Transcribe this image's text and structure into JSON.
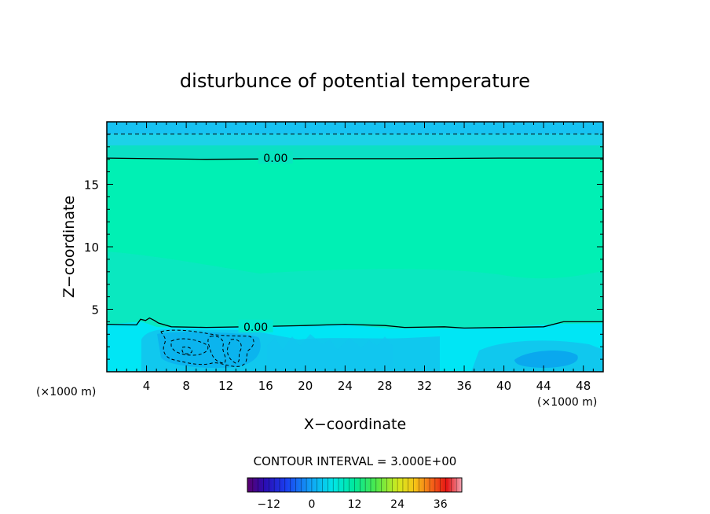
{
  "chart_data": {
    "type": "contour",
    "title": "disturbunce of potential temperature",
    "xlabel": "X−coordinate",
    "ylabel": "Z−coordinate",
    "x_unit_left": "(×1000 m)",
    "x_unit_right": "(×1000 m)",
    "xlim": [
      0,
      50
    ],
    "ylim": [
      0,
      20
    ],
    "x_ticks": [
      4,
      8,
      12,
      16,
      20,
      24,
      28,
      32,
      36,
      40,
      44,
      48
    ],
    "x_tick_labels": [
      "4",
      "8",
      "12",
      "16",
      "20",
      "24",
      "28",
      "32",
      "36",
      "40",
      "44",
      "48"
    ],
    "y_ticks": [
      5,
      10,
      15
    ],
    "y_tick_labels": [
      "5",
      "10",
      "15"
    ],
    "contour_interval_text": "CONTOUR INTERVAL = 3.000E+00",
    "contour_interval": 3.0,
    "contour_labels": [
      {
        "text": "0.00",
        "x": 17,
        "z": 17.1
      },
      {
        "text": "0.00",
        "x": 15,
        "z": 3.6
      }
    ],
    "zero_contours": [
      [
        [
          0,
          17.1
        ],
        [
          10,
          17.0
        ],
        [
          20,
          17.05
        ],
        [
          30,
          17.05
        ],
        [
          40,
          17.1
        ],
        [
          50,
          17.1
        ]
      ],
      [
        [
          0,
          3.8
        ],
        [
          3,
          3.75
        ],
        [
          3.4,
          4.2
        ],
        [
          3.9,
          4.1
        ],
        [
          4.3,
          4.3
        ],
        [
          4.8,
          4.1
        ],
        [
          5.2,
          3.9
        ],
        [
          6.5,
          3.6
        ],
        [
          10,
          3.55
        ],
        [
          14,
          3.6
        ],
        [
          20,
          3.7
        ],
        [
          24,
          3.8
        ],
        [
          28,
          3.7
        ],
        [
          30,
          3.55
        ],
        [
          34,
          3.6
        ],
        [
          36,
          3.5
        ],
        [
          40,
          3.55
        ],
        [
          44,
          3.6
        ],
        [
          46,
          4.0
        ],
        [
          50,
          4.0
        ]
      ]
    ],
    "negative_contours": [
      {
        "x": 3.6,
        "z": 19.1,
        "note": "dashed"
      }
    ],
    "colorbar": {
      "min": -18,
      "max": 42,
      "ticks": [
        -12,
        0,
        12,
        24,
        36
      ],
      "tick_labels": [
        "−12",
        "0",
        "12",
        "24",
        "36"
      ]
    },
    "colors": {
      "top_band": "#17c2f2",
      "upper_band": "#1cd2e8",
      "mid_field": "#00f0b4",
      "mid_light": "#0ae8c0",
      "lower_field": "#00e6f5",
      "cool_patch": "#10c8ee",
      "cold_patch": "#0aa8ee"
    },
    "grid": false,
    "legend": "none"
  }
}
